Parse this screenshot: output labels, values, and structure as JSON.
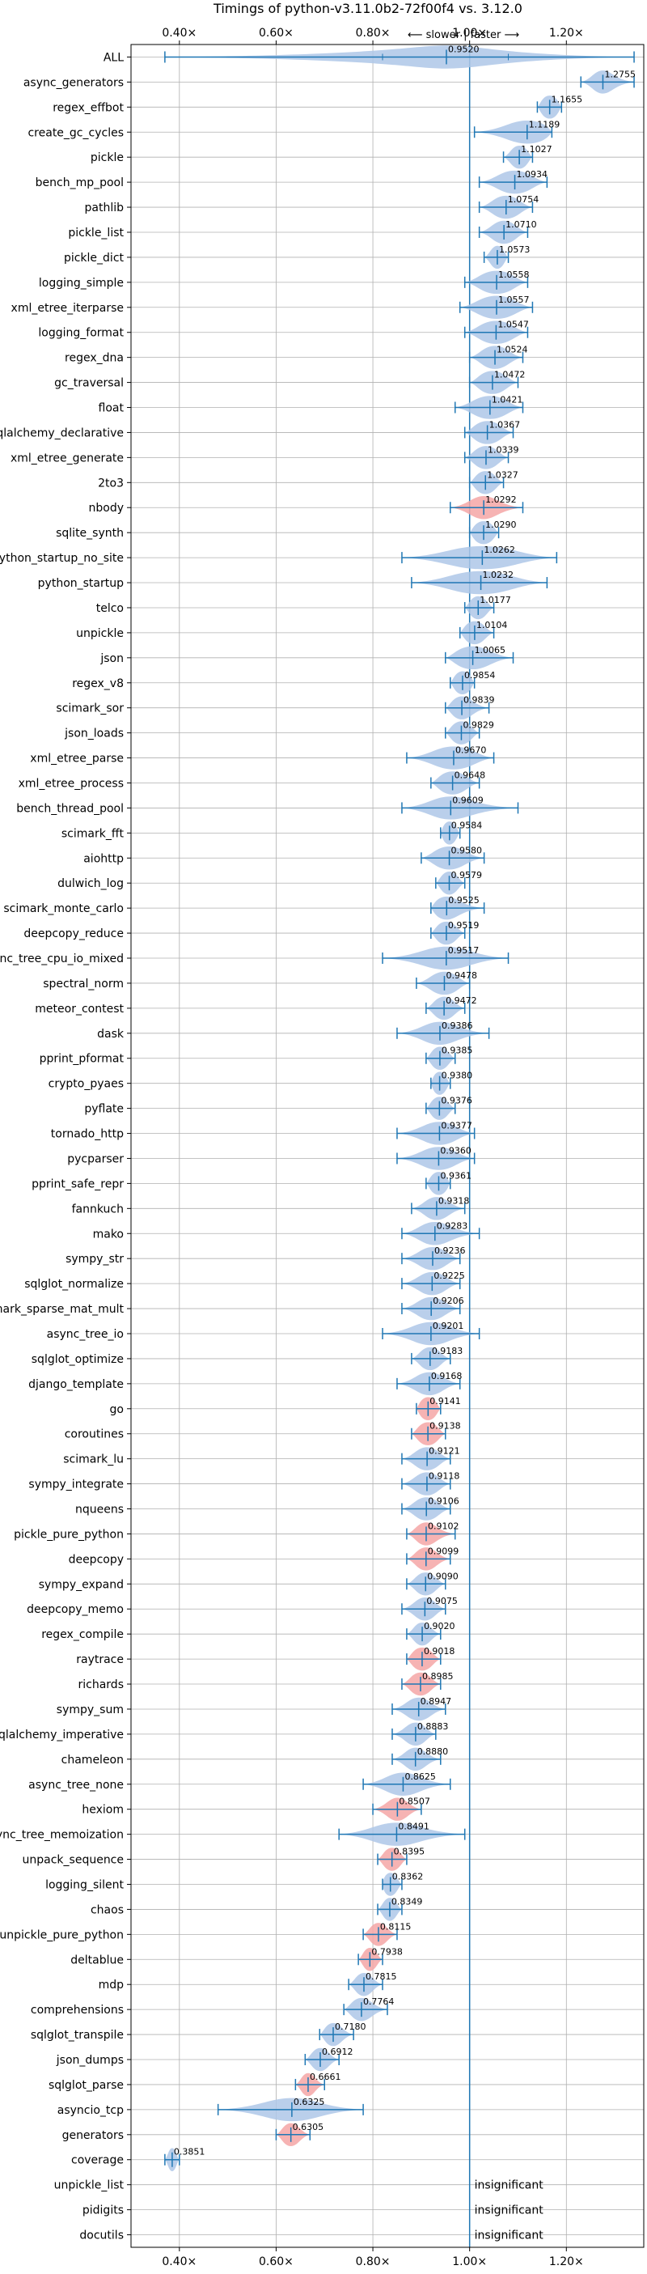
{
  "chart_data": {
    "type": "violin",
    "title": "Timings of python-v3.11.0b2-72f00f4 vs. 3.12.0",
    "direction_label": "⟵ slower | faster ⟶",
    "xlim": [
      0.3,
      1.36
    ],
    "x_ticks": [
      0.4,
      0.6,
      0.8,
      1.0,
      1.2
    ],
    "x_tick_labels": [
      "0.40×",
      "0.60×",
      "0.80×",
      "1.00×",
      "1.20×"
    ],
    "reference_line": 1.0,
    "grid": true,
    "insignificant_label": "insignificant",
    "colors": {
      "violin": "#aec7e8",
      "violin_alt": "#f4a6a6",
      "line": "#1f77b4",
      "grid": "#b0b0b0"
    },
    "benchmarks": [
      {
        "name": "ALL",
        "value": 0.952,
        "label": "0.9520",
        "min": 0.37,
        "max": 1.34,
        "ext_lo": 0.82,
        "ext_hi": 1.08,
        "spread": 0.13
      },
      {
        "name": "async_generators",
        "value": 1.2755,
        "label": "1.2755",
        "min": 1.23,
        "max": 1.34,
        "spread": 0.03
      },
      {
        "name": "regex_effbot",
        "value": 1.1655,
        "label": "1.1655",
        "min": 1.14,
        "max": 1.19,
        "spread": 0.025
      },
      {
        "name": "create_gc_cycles",
        "value": 1.1189,
        "label": "1.1189",
        "min": 1.01,
        "max": 1.17,
        "spread": 0.06
      },
      {
        "name": "pickle",
        "value": 1.1027,
        "label": "1.1027",
        "min": 1.07,
        "max": 1.13,
        "spread": 0.025
      },
      {
        "name": "bench_mp_pool",
        "value": 1.0934,
        "label": "1.0934",
        "min": 1.02,
        "max": 1.16,
        "spread": 0.05
      },
      {
        "name": "pathlib",
        "value": 1.0754,
        "label": "1.0754",
        "min": 1.02,
        "max": 1.13,
        "spread": 0.04
      },
      {
        "name": "pickle_list",
        "value": 1.071,
        "label": "1.0710",
        "min": 1.02,
        "max": 1.12,
        "spread": 0.035
      },
      {
        "name": "pickle_dict",
        "value": 1.0573,
        "label": "1.0573",
        "min": 1.03,
        "max": 1.08,
        "spread": 0.02
      },
      {
        "name": "logging_simple",
        "value": 1.0558,
        "label": "1.0558",
        "min": 0.99,
        "max": 1.12,
        "spread": 0.05
      },
      {
        "name": "xml_etree_iterparse",
        "value": 1.0557,
        "label": "1.0557",
        "min": 0.98,
        "max": 1.13,
        "spread": 0.055
      },
      {
        "name": "logging_format",
        "value": 1.0547,
        "label": "1.0547",
        "min": 0.99,
        "max": 1.12,
        "spread": 0.05
      },
      {
        "name": "regex_dna",
        "value": 1.0524,
        "label": "1.0524",
        "min": 1.0,
        "max": 1.11,
        "spread": 0.04
      },
      {
        "name": "gc_traversal",
        "value": 1.0472,
        "label": "1.0472",
        "min": 1.0,
        "max": 1.1,
        "spread": 0.04
      },
      {
        "name": "float",
        "value": 1.0421,
        "label": "1.0421",
        "min": 0.97,
        "max": 1.11,
        "spread": 0.05
      },
      {
        "name": "sqlalchemy_declarative",
        "value": 1.0367,
        "label": "1.0367",
        "min": 0.99,
        "max": 1.09,
        "spread": 0.04
      },
      {
        "name": "xml_etree_generate",
        "value": 1.0339,
        "label": "1.0339",
        "min": 0.99,
        "max": 1.08,
        "spread": 0.035
      },
      {
        "name": "2to3",
        "value": 1.0327,
        "label": "1.0327",
        "min": 1.0,
        "max": 1.07,
        "spread": 0.03
      },
      {
        "name": "nbody",
        "value": 1.0292,
        "label": "1.0292",
        "min": 0.96,
        "max": 1.11,
        "spread": 0.04,
        "alt": true
      },
      {
        "name": "sqlite_synth",
        "value": 1.029,
        "label": "1.0290",
        "min": 1.0,
        "max": 1.06,
        "spread": 0.03
      },
      {
        "name": "python_startup_no_site",
        "value": 1.0262,
        "label": "1.0262",
        "min": 0.86,
        "max": 1.18,
        "spread": 0.1
      },
      {
        "name": "python_startup",
        "value": 1.0232,
        "label": "1.0232",
        "min": 0.88,
        "max": 1.16,
        "spread": 0.09
      },
      {
        "name": "telco",
        "value": 1.0177,
        "label": "1.0177",
        "min": 0.99,
        "max": 1.05,
        "spread": 0.025
      },
      {
        "name": "unpickle",
        "value": 1.0104,
        "label": "1.0104",
        "min": 0.98,
        "max": 1.05,
        "spread": 0.03
      },
      {
        "name": "json",
        "value": 1.0065,
        "label": "1.0065",
        "min": 0.95,
        "max": 1.09,
        "spread": 0.05
      },
      {
        "name": "regex_v8",
        "value": 0.9854,
        "label": "0.9854",
        "min": 0.96,
        "max": 1.01,
        "spread": 0.025
      },
      {
        "name": "scimark_sor",
        "value": 0.9839,
        "label": "0.9839",
        "min": 0.95,
        "max": 1.04,
        "spread": 0.03
      },
      {
        "name": "json_loads",
        "value": 0.9829,
        "label": "0.9829",
        "min": 0.95,
        "max": 1.02,
        "spread": 0.03
      },
      {
        "name": "xml_etree_parse",
        "value": 0.967,
        "label": "0.9670",
        "min": 0.87,
        "max": 1.05,
        "spread": 0.06
      },
      {
        "name": "xml_etree_process",
        "value": 0.9648,
        "label": "0.9648",
        "min": 0.92,
        "max": 1.02,
        "spread": 0.04
      },
      {
        "name": "bench_thread_pool",
        "value": 0.9609,
        "label": "0.9609",
        "min": 0.86,
        "max": 1.1,
        "spread": 0.06
      },
      {
        "name": "scimark_fft",
        "value": 0.9584,
        "label": "0.9584",
        "min": 0.94,
        "max": 0.98,
        "spread": 0.02
      },
      {
        "name": "aiohttp",
        "value": 0.958,
        "label": "0.9580",
        "min": 0.9,
        "max": 1.03,
        "spread": 0.045
      },
      {
        "name": "dulwich_log",
        "value": 0.9579,
        "label": "0.9579",
        "min": 0.93,
        "max": 0.99,
        "spread": 0.025
      },
      {
        "name": "scimark_monte_carlo",
        "value": 0.9525,
        "label": "0.9525",
        "min": 0.92,
        "max": 1.03,
        "spread": 0.035
      },
      {
        "name": "deepcopy_reduce",
        "value": 0.9519,
        "label": "0.9519",
        "min": 0.92,
        "max": 0.99,
        "spread": 0.03
      },
      {
        "name": "async_tree_cpu_io_mixed",
        "value": 0.9517,
        "label": "0.9517",
        "min": 0.82,
        "max": 1.08,
        "spread": 0.07
      },
      {
        "name": "spectral_norm",
        "value": 0.9478,
        "label": "0.9478",
        "min": 0.89,
        "max": 1.0,
        "spread": 0.04
      },
      {
        "name": "meteor_contest",
        "value": 0.9472,
        "label": "0.9472",
        "min": 0.91,
        "max": 0.99,
        "spread": 0.03
      },
      {
        "name": "dask",
        "value": 0.9386,
        "label": "0.9386",
        "min": 0.85,
        "max": 1.04,
        "spread": 0.05
      },
      {
        "name": "pprint_pformat",
        "value": 0.9385,
        "label": "0.9385",
        "min": 0.91,
        "max": 0.97,
        "spread": 0.025
      },
      {
        "name": "crypto_pyaes",
        "value": 0.938,
        "label": "0.9380",
        "min": 0.92,
        "max": 0.96,
        "spread": 0.02
      },
      {
        "name": "pyflate",
        "value": 0.9376,
        "label": "0.9376",
        "min": 0.91,
        "max": 0.97,
        "spread": 0.025
      },
      {
        "name": "tornado_http",
        "value": 0.9377,
        "label": "0.9377",
        "min": 0.85,
        "max": 1.01,
        "spread": 0.05
      },
      {
        "name": "pycparser",
        "value": 0.936,
        "label": "0.9360",
        "min": 0.85,
        "max": 1.01,
        "spread": 0.05
      },
      {
        "name": "pprint_safe_repr",
        "value": 0.9361,
        "label": "0.9361",
        "min": 0.91,
        "max": 0.96,
        "spread": 0.025
      },
      {
        "name": "fannkuch",
        "value": 0.9318,
        "label": "0.9318",
        "min": 0.88,
        "max": 0.99,
        "spread": 0.035
      },
      {
        "name": "mako",
        "value": 0.9283,
        "label": "0.9283",
        "min": 0.86,
        "max": 1.02,
        "spread": 0.045
      },
      {
        "name": "sympy_str",
        "value": 0.9236,
        "label": "0.9236",
        "min": 0.86,
        "max": 0.98,
        "spread": 0.04
      },
      {
        "name": "sqlglot_normalize",
        "value": 0.9225,
        "label": "0.9225",
        "min": 0.86,
        "max": 0.98,
        "spread": 0.04
      },
      {
        "name": "scimark_sparse_mat_mult",
        "value": 0.9206,
        "label": "0.9206",
        "min": 0.86,
        "max": 0.98,
        "spread": 0.04
      },
      {
        "name": "async_tree_io",
        "value": 0.9201,
        "label": "0.9201",
        "min": 0.82,
        "max": 1.02,
        "spread": 0.055
      },
      {
        "name": "sqlglot_optimize",
        "value": 0.9183,
        "label": "0.9183",
        "min": 0.88,
        "max": 0.96,
        "spread": 0.03
      },
      {
        "name": "django_template",
        "value": 0.9168,
        "label": "0.9168",
        "min": 0.85,
        "max": 0.98,
        "spread": 0.04
      },
      {
        "name": "go",
        "value": 0.9141,
        "label": "0.9141",
        "min": 0.89,
        "max": 0.94,
        "spread": 0.025,
        "alt": true
      },
      {
        "name": "coroutines",
        "value": 0.9138,
        "label": "0.9138",
        "min": 0.88,
        "max": 0.95,
        "spread": 0.03,
        "alt": true
      },
      {
        "name": "scimark_lu",
        "value": 0.9121,
        "label": "0.9121",
        "min": 0.86,
        "max": 0.96,
        "spread": 0.035
      },
      {
        "name": "sympy_integrate",
        "value": 0.9118,
        "label": "0.9118",
        "min": 0.86,
        "max": 0.96,
        "spread": 0.035
      },
      {
        "name": "nqueens",
        "value": 0.9106,
        "label": "0.9106",
        "min": 0.86,
        "max": 0.96,
        "spread": 0.035
      },
      {
        "name": "pickle_pure_python",
        "value": 0.9102,
        "label": "0.9102",
        "min": 0.87,
        "max": 0.97,
        "spread": 0.03,
        "alt": true
      },
      {
        "name": "deepcopy",
        "value": 0.9099,
        "label": "0.9099",
        "min": 0.87,
        "max": 0.96,
        "spread": 0.03,
        "alt": true
      },
      {
        "name": "sympy_expand",
        "value": 0.909,
        "label": "0.9090",
        "min": 0.87,
        "max": 0.95,
        "spread": 0.03
      },
      {
        "name": "deepcopy_memo",
        "value": 0.9075,
        "label": "0.9075",
        "min": 0.86,
        "max": 0.95,
        "spread": 0.03
      },
      {
        "name": "regex_compile",
        "value": 0.902,
        "label": "0.9020",
        "min": 0.87,
        "max": 0.94,
        "spread": 0.025
      },
      {
        "name": "raytrace",
        "value": 0.9018,
        "label": "0.9018",
        "min": 0.87,
        "max": 0.94,
        "spread": 0.03,
        "alt": true
      },
      {
        "name": "richards",
        "value": 0.8985,
        "label": "0.8985",
        "min": 0.86,
        "max": 0.94,
        "spread": 0.03,
        "alt": true
      },
      {
        "name": "sympy_sum",
        "value": 0.8947,
        "label": "0.8947",
        "min": 0.84,
        "max": 0.95,
        "spread": 0.035
      },
      {
        "name": "sqlalchemy_imperative",
        "value": 0.8883,
        "label": "0.8883",
        "min": 0.84,
        "max": 0.93,
        "spread": 0.03
      },
      {
        "name": "chameleon",
        "value": 0.888,
        "label": "0.8880",
        "min": 0.84,
        "max": 0.94,
        "spread": 0.03
      },
      {
        "name": "async_tree_none",
        "value": 0.8625,
        "label": "0.8625",
        "min": 0.78,
        "max": 0.96,
        "spread": 0.05
      },
      {
        "name": "hexiom",
        "value": 0.8507,
        "label": "0.8507",
        "min": 0.8,
        "max": 0.9,
        "spread": 0.03,
        "alt": true
      },
      {
        "name": "async_tree_memoization",
        "value": 0.8491,
        "label": "0.8491",
        "min": 0.73,
        "max": 0.99,
        "spread": 0.07
      },
      {
        "name": "unpack_sequence",
        "value": 0.8395,
        "label": "0.8395",
        "min": 0.81,
        "max": 0.87,
        "spread": 0.025,
        "alt": true
      },
      {
        "name": "logging_silent",
        "value": 0.8362,
        "label": "0.8362",
        "min": 0.82,
        "max": 0.86,
        "spread": 0.02
      },
      {
        "name": "chaos",
        "value": 0.8349,
        "label": "0.8349",
        "min": 0.81,
        "max": 0.86,
        "spread": 0.02
      },
      {
        "name": "unpickle_pure_python",
        "value": 0.8115,
        "label": "0.8115",
        "min": 0.78,
        "max": 0.85,
        "spread": 0.025,
        "alt": true
      },
      {
        "name": "deltablue",
        "value": 0.7938,
        "label": "0.7938",
        "min": 0.77,
        "max": 0.82,
        "spread": 0.02,
        "alt": true
      },
      {
        "name": "mdp",
        "value": 0.7815,
        "label": "0.7815",
        "min": 0.75,
        "max": 0.82,
        "spread": 0.025
      },
      {
        "name": "comprehensions",
        "value": 0.7764,
        "label": "0.7764",
        "min": 0.74,
        "max": 0.83,
        "spread": 0.03
      },
      {
        "name": "sqlglot_transpile",
        "value": 0.718,
        "label": "0.7180",
        "min": 0.69,
        "max": 0.76,
        "spread": 0.025
      },
      {
        "name": "json_dumps",
        "value": 0.6912,
        "label": "0.6912",
        "min": 0.66,
        "max": 0.73,
        "spread": 0.025
      },
      {
        "name": "sqlglot_parse",
        "value": 0.6661,
        "label": "0.6661",
        "min": 0.64,
        "max": 0.7,
        "spread": 0.02,
        "alt": true
      },
      {
        "name": "asyncio_tcp",
        "value": 0.6325,
        "label": "0.6325",
        "min": 0.48,
        "max": 0.78,
        "spread": 0.08
      },
      {
        "name": "generators",
        "value": 0.6305,
        "label": "0.6305",
        "min": 0.6,
        "max": 0.67,
        "spread": 0.025,
        "alt": true
      },
      {
        "name": "coverage",
        "value": 0.3851,
        "label": "0.3851",
        "min": 0.37,
        "max": 0.4,
        "spread": 0.012
      },
      {
        "name": "unpickle_list",
        "insignificant": true
      },
      {
        "name": "pidigits",
        "insignificant": true
      },
      {
        "name": "docutils",
        "insignificant": true
      }
    ]
  }
}
